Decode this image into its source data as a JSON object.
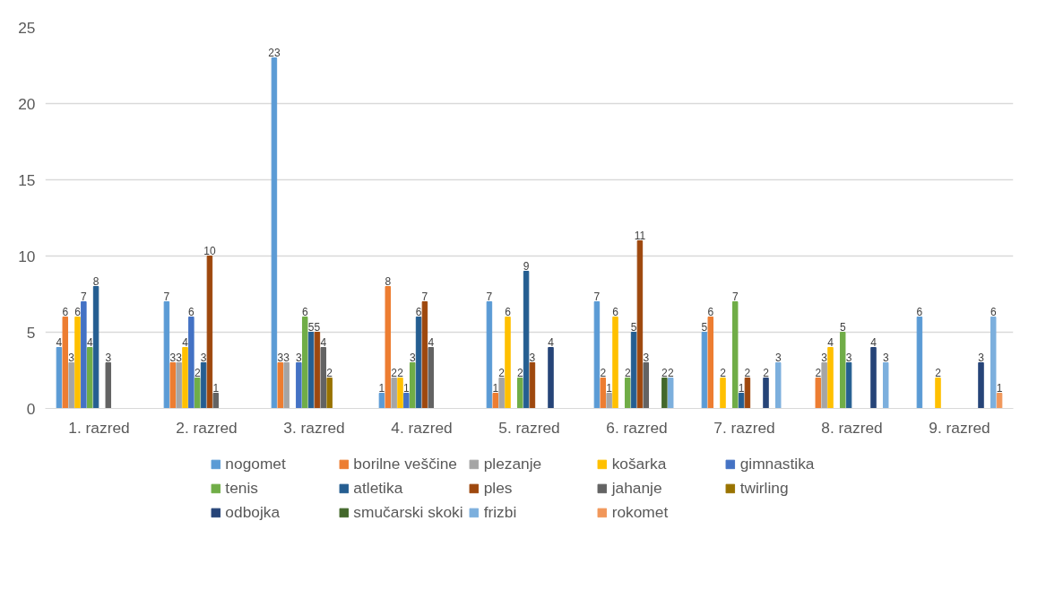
{
  "chart_data": {
    "type": "bar",
    "categories": [
      "1. razred",
      "2. razred",
      "3. razred",
      "4. razred",
      "5. razred",
      "6. razred",
      "7. razred",
      "8. razred",
      "9. razred"
    ],
    "series": [
      {
        "name": "nogomet",
        "color": "#5b9bd5",
        "values": [
          4,
          7,
          23,
          1,
          7,
          7,
          5,
          null,
          6
        ]
      },
      {
        "name": "borilne veščine",
        "color": "#ed7d31",
        "values": [
          6,
          3,
          3,
          8,
          1,
          2,
          6,
          2,
          null
        ]
      },
      {
        "name": "plezanje",
        "color": "#a5a5a5",
        "values": [
          3,
          3,
          3,
          2,
          2,
          1,
          null,
          3,
          null
        ]
      },
      {
        "name": "košarka",
        "color": "#ffc000",
        "values": [
          6,
          4,
          null,
          2,
          6,
          6,
          2,
          4,
          2
        ]
      },
      {
        "name": "gimnastika",
        "color": "#4472c4",
        "values": [
          7,
          6,
          3,
          1,
          null,
          null,
          null,
          null,
          null
        ]
      },
      {
        "name": "tenis",
        "color": "#70ad47",
        "values": [
          4,
          2,
          6,
          3,
          2,
          2,
          7,
          5,
          null
        ]
      },
      {
        "name": "atletika",
        "color": "#255e91",
        "values": [
          8,
          3,
          5,
          6,
          9,
          5,
          1,
          3,
          null
        ]
      },
      {
        "name": "ples",
        "color": "#9e480e",
        "values": [
          null,
          10,
          5,
          7,
          3,
          11,
          2,
          null,
          null
        ]
      },
      {
        "name": "jahanje",
        "color": "#636363",
        "values": [
          3,
          1,
          4,
          4,
          null,
          3,
          null,
          null,
          null
        ]
      },
      {
        "name": "twirling",
        "color": "#997300",
        "values": [
          null,
          null,
          2,
          null,
          null,
          null,
          null,
          null,
          null
        ]
      },
      {
        "name": "odbojka",
        "color": "#264478",
        "values": [
          null,
          null,
          null,
          null,
          4,
          null,
          2,
          4,
          3
        ]
      },
      {
        "name": "smučarski skoki",
        "color": "#43682b",
        "values": [
          null,
          null,
          null,
          null,
          null,
          2,
          null,
          null,
          null
        ]
      },
      {
        "name": "frizbi",
        "color": "#7cafdd",
        "values": [
          null,
          null,
          null,
          null,
          null,
          2,
          3,
          3,
          6
        ]
      },
      {
        "name": "rokomet",
        "color": "#f1975a",
        "values": [
          null,
          null,
          null,
          null,
          null,
          null,
          null,
          null,
          1
        ]
      }
    ],
    "ylim": [
      0,
      25
    ],
    "yticks": [
      0,
      5,
      10,
      15,
      20,
      25
    ],
    "grid": "y",
    "legend": "bottom",
    "data_labels": true
  }
}
